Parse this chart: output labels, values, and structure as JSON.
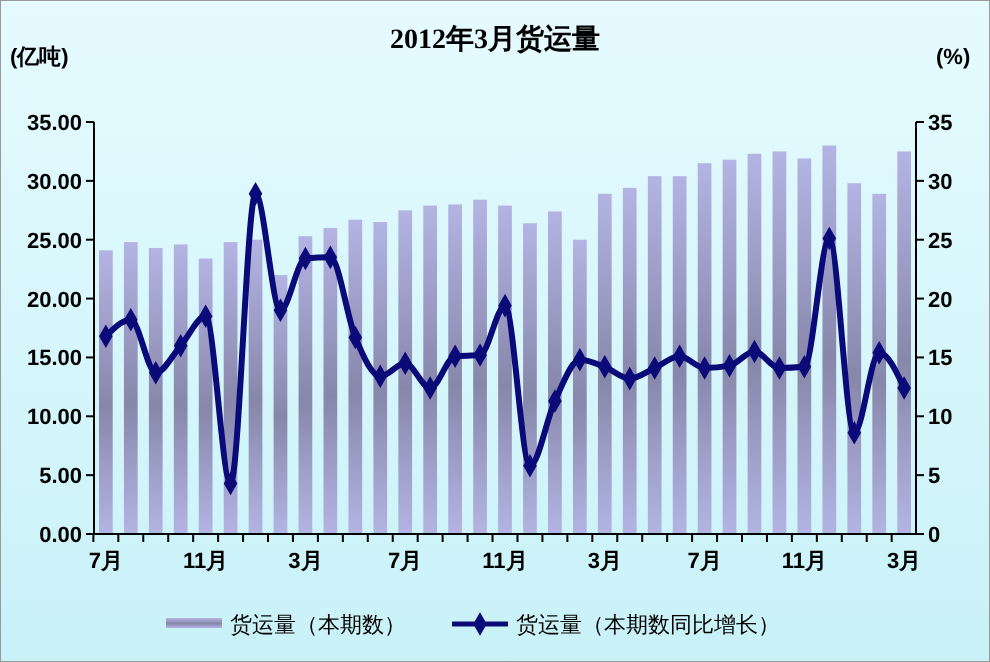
{
  "chart_data": {
    "type": "bar",
    "title": "2012年3月货运量",
    "ylabel": "(亿吨)",
    "y2label": "(%)",
    "categories": [
      "7月",
      null,
      null,
      null,
      "11月",
      null,
      null,
      null,
      "3月",
      null,
      null,
      null,
      "7月",
      null,
      null,
      null,
      "11月",
      null,
      null,
      null,
      "3月",
      null,
      null,
      null,
      "7月",
      null,
      null,
      null,
      "11月",
      null,
      null,
      null,
      "3月"
    ],
    "series": [
      {
        "name": "货运量（本期数）",
        "color": "#b4b4e4",
        "values": [
          24.1,
          24.8,
          24.3,
          24.6,
          23.4,
          24.8,
          25.0,
          22.0,
          25.3,
          26.0,
          26.7,
          26.5,
          27.5,
          27.9,
          28.0,
          28.4,
          27.9,
          26.4,
          27.4,
          25.0,
          28.9,
          29.4,
          30.4,
          30.4,
          31.5,
          31.8,
          32.3,
          32.5,
          31.9,
          33.0,
          29.8,
          28.9,
          32.5
        ]
      },
      {
        "name": "货运量（本期数同比增长）",
        "type": "line",
        "axis": "y2",
        "color": "#0a0a78",
        "marker": "diamond",
        "values": [
          16.8,
          18.2,
          13.7,
          16.0,
          18.5,
          4.3,
          28.9,
          19.0,
          23.4,
          23.5,
          16.7,
          13.4,
          14.5,
          12.4,
          15.1,
          15.2,
          19.4,
          5.8,
          11.3,
          14.8,
          14.2,
          13.2,
          14.1,
          15.1,
          14.1,
          14.3,
          15.5,
          14.1,
          14.2,
          25.1,
          8.6,
          15.4,
          12.4
        ]
      }
    ],
    "ylim": [
      0,
      35
    ],
    "yticks": [
      {
        "value": 0,
        "label": "0.00"
      },
      {
        "value": 5,
        "label": "5.00"
      },
      {
        "value": 10,
        "label": "10.00"
      },
      {
        "value": 15,
        "label": "15.00"
      },
      {
        "value": 20,
        "label": "20.00"
      },
      {
        "value": 25,
        "label": "25.00"
      },
      {
        "value": 30,
        "label": "30.00"
      },
      {
        "value": 35,
        "label": "35.00"
      }
    ],
    "y2lim": [
      0,
      35
    ],
    "y2ticks": [
      0,
      5,
      10,
      15,
      20,
      25,
      30,
      35
    ],
    "grid": false,
    "legend": "bottom"
  }
}
